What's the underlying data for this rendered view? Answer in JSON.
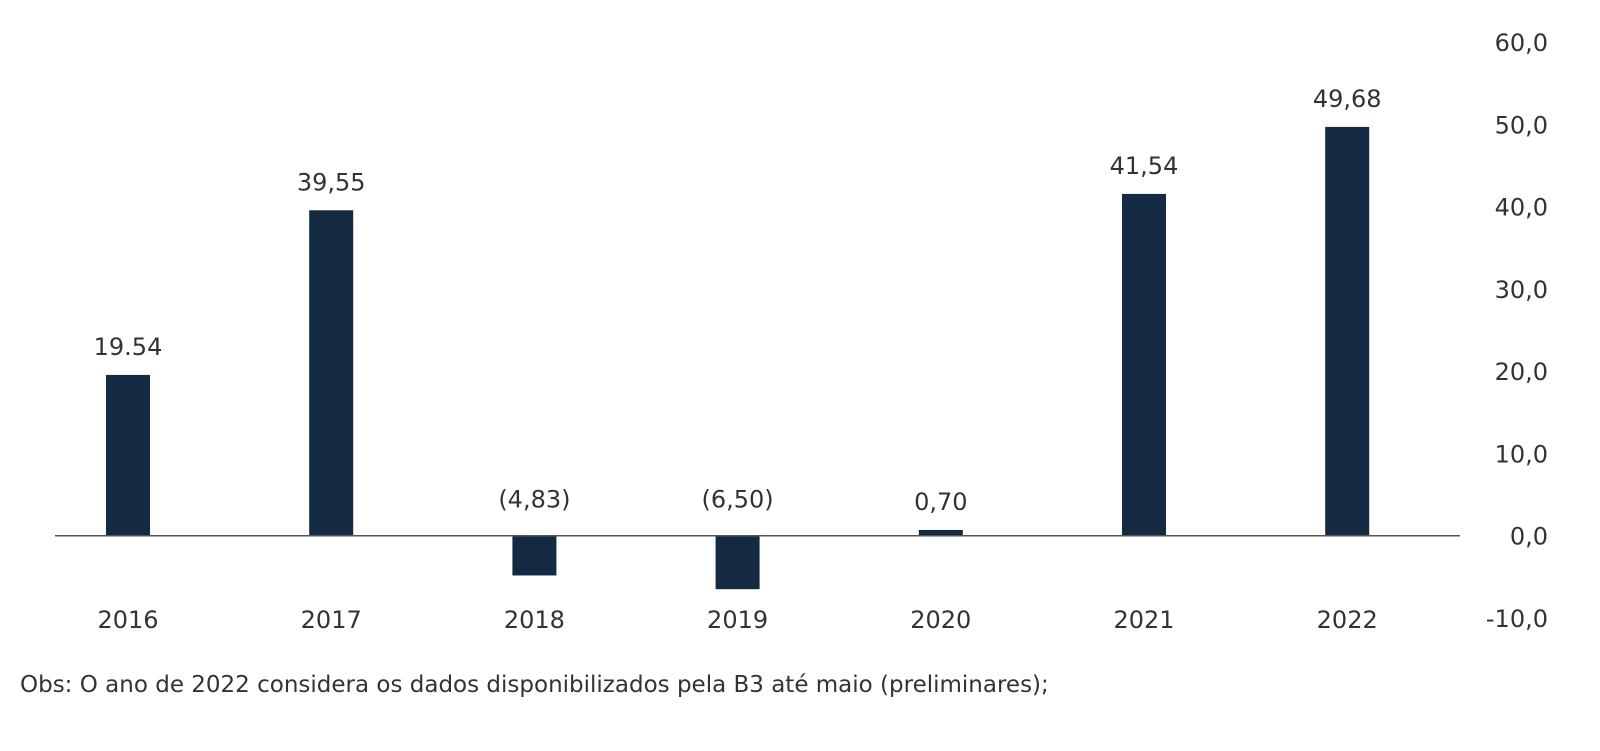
{
  "chart_data": {
    "type": "bar",
    "categories": [
      "2016",
      "2017",
      "2018",
      "2019",
      "2020",
      "2021",
      "2022"
    ],
    "values": [
      19.54,
      39.55,
      -4.83,
      -6.5,
      0.7,
      41.54,
      49.68
    ],
    "data_labels": [
      "19.54",
      "39,55",
      "(4,83)",
      "(6,50)",
      "0,70",
      "41,54",
      "49,68"
    ],
    "title": "",
    "xlabel": "",
    "ylabel": "",
    "ylim": [
      -10,
      60
    ],
    "yticks": [
      -10,
      0,
      10,
      20,
      30,
      40,
      50,
      60
    ],
    "ytick_labels": [
      "-10,0",
      "0,0",
      "10,0",
      "20,0",
      "30,0",
      "40,0",
      "50,0",
      "60,0"
    ],
    "y_axis_position": "right",
    "grid": false,
    "bar_color": "#132a42",
    "axis_color": "#555555"
  },
  "note": "Obs: O ano de 2022 considera os dados disponibilizados pela B3 até maio (preliminares);"
}
